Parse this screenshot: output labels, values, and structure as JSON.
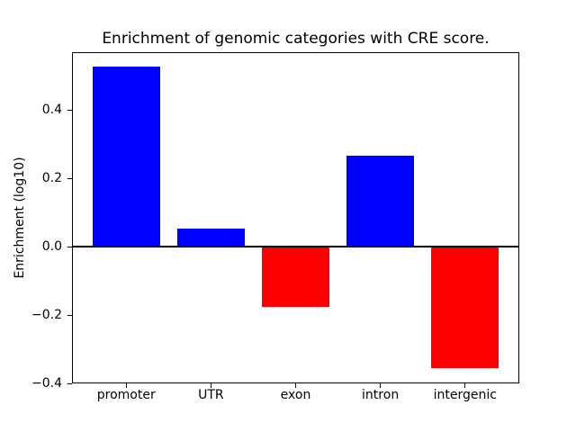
{
  "chart_data": {
    "type": "bar",
    "title": "Enrichment of genomic categories with CRE score.",
    "xlabel": "",
    "ylabel": "Enrichment (log10)",
    "categories": [
      "promoter",
      "UTR",
      "exon",
      "intron",
      "intergenic"
    ],
    "values": [
      0.529,
      0.053,
      -0.176,
      0.267,
      -0.355
    ],
    "positive_color": "#0000ff",
    "negative_color": "#ff0000",
    "yticks": [
      0.4,
      0.2,
      0.0,
      -0.2,
      -0.4
    ],
    "ytick_labels": [
      "0.4",
      "0.2",
      "0.0",
      "−0.2",
      "−0.4"
    ],
    "ylim": [
      -0.4,
      0.57
    ],
    "xlim": [
      -0.64,
      4.64
    ],
    "bar_width": 0.8,
    "zero_line": true,
    "grid": false,
    "legend": "none",
    "axis_color": "#000000",
    "background_color": "#ffffff"
  }
}
